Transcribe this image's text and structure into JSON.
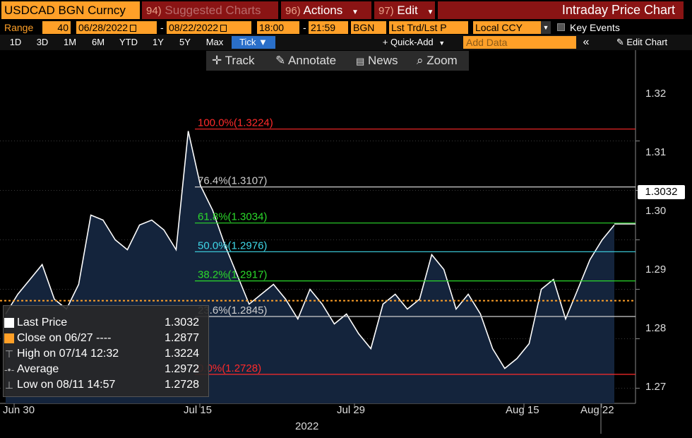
{
  "header": {
    "ticker": "USDCAD BGN Curncy",
    "suggested_num": "94)",
    "suggested_label": "Suggested Charts",
    "actions_num": "96)",
    "actions_label": "Actions",
    "edit_num": "97)",
    "edit_label": "Edit",
    "title": "Intraday Price Chart"
  },
  "params": {
    "range_label": "Range",
    "days": "40",
    "start_date": "06/28/2022",
    "dash": "-",
    "end_date": "08/22/2022",
    "start_time": "18:00",
    "dash2": "-",
    "end_time": "21:59",
    "source": "BGN",
    "field": "Lst Trd/Lst P",
    "currency": "Local CCY",
    "key_events": "Key Events"
  },
  "range_buttons": [
    "1D",
    "3D",
    "1M",
    "6M",
    "YTD",
    "1Y",
    "5Y",
    "Max",
    "Tick ▼"
  ],
  "quick_add": "+ Quick-Add",
  "add_data_placeholder": "Add Data",
  "collapse": "«",
  "edit_chart": "Edit Chart",
  "chart_toolbar": {
    "track": "Track",
    "annotate": "Annotate",
    "news": "News",
    "zoom": "Zoom"
  },
  "chart_data": {
    "type": "area",
    "x_ticks": [
      "Jun 30",
      "Jul 15",
      "Jul 29",
      "Aug 15",
      "Aug 22"
    ],
    "x_year": "2022",
    "y_ticks": [
      "1.32",
      "1.31",
      "1.30",
      "1.29",
      "1.28",
      "1.27"
    ],
    "ylim": [
      1.2655,
      1.3355
    ],
    "last_price_tag": "1.3032",
    "fib_levels": [
      {
        "label": "100.0%(1.3224)",
        "value": 1.3224,
        "color": "#ff2a2a"
      },
      {
        "label": "76.4%(1.3107)",
        "value": 1.3107,
        "color": "#cfcfcf"
      },
      {
        "label": "61.8%(1.3034)",
        "value": 1.3034,
        "color": "#2bd92b"
      },
      {
        "label": "50.0%(1.2976)",
        "value": 1.2976,
        "color": "#3fd8e8"
      },
      {
        "label": "38.2%(1.2917)",
        "value": 1.2917,
        "color": "#2bd92b"
      },
      {
        "label": "23.6%(1.2845)",
        "value": 1.2845,
        "color": "#cfcfcf"
      },
      {
        "label": "0.0%(1.2728)",
        "value": 1.2728,
        "color": "#ff2a2a"
      }
    ],
    "previous_close": 1.2877,
    "series": [
      {
        "x": [
          0,
          0.02,
          0.04,
          0.06,
          0.08,
          0.1,
          0.12,
          0.14,
          0.16,
          0.18,
          0.2,
          0.22,
          0.24,
          0.26,
          0.28,
          0.3,
          0.32,
          0.34,
          0.36,
          0.38,
          0.4,
          0.42,
          0.44,
          0.46,
          0.48,
          0.5,
          0.52,
          0.54,
          0.56,
          0.58,
          0.6,
          0.62,
          0.64,
          0.66,
          0.68,
          0.7,
          0.72,
          0.74,
          0.76,
          0.78,
          0.8,
          0.82,
          0.84,
          0.86,
          0.88,
          0.9,
          0.92,
          0.94,
          0.96,
          0.98,
          1.0
        ],
        "values": [
          1.285,
          1.289,
          1.292,
          1.295,
          1.288,
          1.286,
          1.291,
          1.305,
          1.304,
          1.3,
          1.298,
          1.303,
          1.304,
          1.302,
          1.298,
          1.322,
          1.311,
          1.306,
          1.299,
          1.293,
          1.287,
          1.289,
          1.291,
          1.288,
          1.284,
          1.29,
          1.287,
          1.283,
          1.285,
          1.281,
          1.278,
          1.287,
          1.289,
          1.286,
          1.288,
          1.297,
          1.294,
          1.286,
          1.289,
          1.285,
          1.278,
          1.274,
          1.276,
          1.279,
          1.29,
          1.292,
          1.284,
          1.29,
          1.296,
          1.3,
          1.303
        ]
      }
    ]
  },
  "legend": {
    "last_price_label": "Last Price",
    "last_price_value": "1.3032",
    "close_label": "Close on 06/27 ----",
    "close_value": "1.2877",
    "high_label": "High on 07/14 12:32",
    "high_value": "1.3224",
    "average_label": "Average",
    "average_value": "1.2972",
    "low_label": "Low on 08/11 14:57",
    "low_value": "1.2728"
  },
  "colors": {
    "orange": "#ffa028",
    "maroon": "#8a1414",
    "area_fill": "#14243c",
    "price_line": "#ffffff"
  }
}
